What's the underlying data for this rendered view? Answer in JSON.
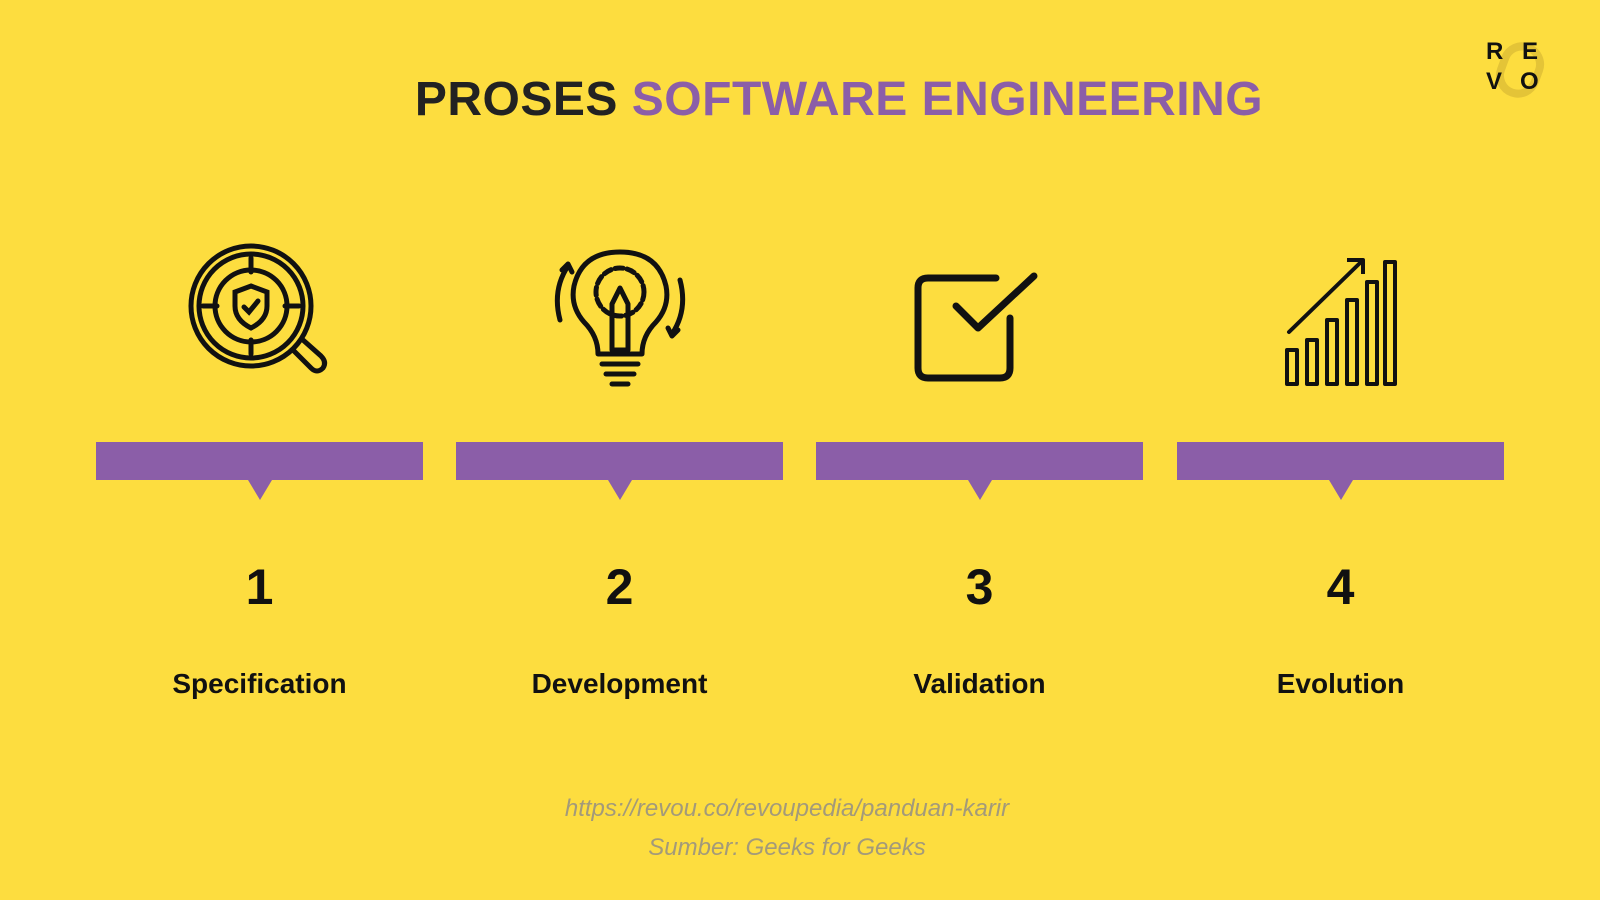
{
  "title": {
    "part1": "PROSES",
    "part2": "SOFTWARE ENGINEERING"
  },
  "logo": {
    "letters": [
      "R",
      "E",
      "V",
      "O"
    ]
  },
  "colors": {
    "background": "#FDDD3F",
    "accent": "#8B5EA8",
    "text": "#111111"
  },
  "steps": [
    {
      "number": "1",
      "label": "Specification",
      "icon": "magnifier-shield-icon"
    },
    {
      "number": "2",
      "label": "Development",
      "icon": "lightbulb-gear-pencil-icon"
    },
    {
      "number": "3",
      "label": "Validation",
      "icon": "checkbox-icon"
    },
    {
      "number": "4",
      "label": "Evolution",
      "icon": "growth-chart-icon"
    }
  ],
  "footer": {
    "url": "https://revou.co/revoupedia/panduan-karir",
    "source": "Sumber: Geeks for Geeks"
  }
}
